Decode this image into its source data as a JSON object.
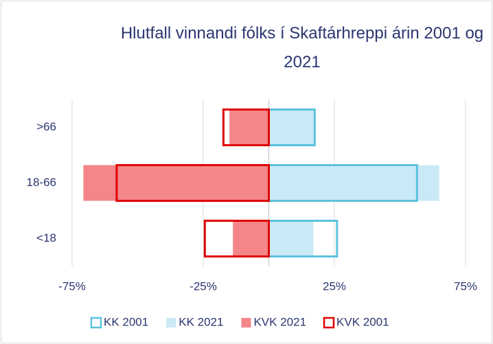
{
  "chart_data": {
    "type": "bar",
    "orientation": "horizontal",
    "title": "Hlutfall vinnandi fólks í Skaftárhreppi árin 2001 og 2021",
    "categories": [
      "<18",
      "18-66",
      ">66"
    ],
    "series": [
      {
        "name": "KK 2021",
        "color": "#c9e9f6",
        "style": "fill",
        "values": [
          17,
          65,
          17.5
        ]
      },
      {
        "name": "KVK 2021",
        "color": "#f4868a",
        "style": "fill",
        "values": [
          -13.7,
          -70.7,
          -15
        ]
      },
      {
        "name": "KK 2001",
        "color": "#5bc2dd",
        "style": "outline",
        "values": [
          26,
          56.5,
          17.5
        ]
      },
      {
        "name": "KVK 2001",
        "color": "#e00000",
        "style": "outline",
        "values": [
          -24.4,
          -58,
          -17.3
        ]
      }
    ],
    "legend_order": [
      2,
      0,
      1,
      3
    ],
    "xlim": [
      -75,
      75
    ],
    "xticks": [
      {
        "value": -75,
        "label": "-75%"
      },
      {
        "value": -25,
        "label": "-25%"
      },
      {
        "value": 25,
        "label": "25%"
      },
      {
        "value": 75,
        "label": "75%"
      }
    ],
    "grid": true,
    "legend": "bottom"
  }
}
